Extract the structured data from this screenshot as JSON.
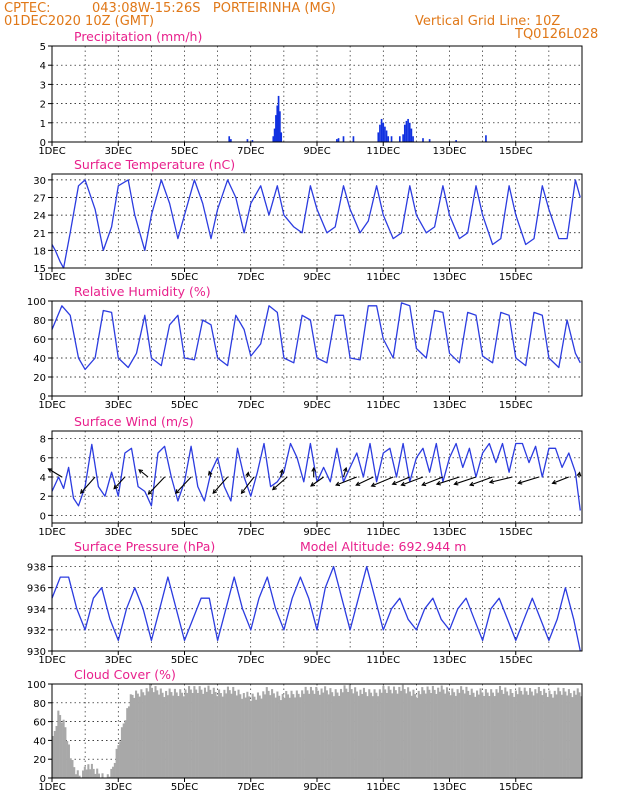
{
  "header": {
    "source": "CPTEC:",
    "location": "043:08W-15:26S   PORTEIRINHA (MG)",
    "run": "01DEC2020 10Z (GMT)",
    "grid_note": "Vertical Grid Line: 10Z",
    "model_id": "TQ0126L028"
  },
  "colors": {
    "header": "#e07818",
    "title": "#e8208c",
    "line": "#2c3ce0",
    "cloud": "#a8a8a8",
    "precip": "#1030e0"
  },
  "chart_data": [
    {
      "type": "bar",
      "title": "Precipitation (mm/h)",
      "ylim": [
        0,
        5
      ],
      "yticks": [
        0,
        1,
        2,
        3,
        4,
        5
      ],
      "xlabels": [
        "1DEC",
        "3DEC",
        "5DEC",
        "7DEC",
        "9DEC",
        "11DEC",
        "13DEC",
        "15DEC"
      ],
      "x_unit": "day",
      "bars": [
        [
          5.35,
          0.3
        ],
        [
          5.4,
          0.15
        ],
        [
          5.9,
          0.15
        ],
        [
          6.05,
          0.1
        ],
        [
          6.68,
          0.3
        ],
        [
          6.72,
          0.7
        ],
        [
          6.76,
          1.4
        ],
        [
          6.8,
          1.9
        ],
        [
          6.84,
          2.4
        ],
        [
          6.88,
          1.6
        ],
        [
          6.92,
          0.5
        ],
        [
          8.6,
          0.15
        ],
        [
          8.65,
          0.2
        ],
        [
          8.8,
          0.3
        ],
        [
          9.1,
          0.3
        ],
        [
          9.85,
          0.5
        ],
        [
          9.9,
          0.9
        ],
        [
          9.95,
          1.2
        ],
        [
          10.0,
          1.0
        ],
        [
          10.05,
          0.8
        ],
        [
          10.1,
          0.6
        ],
        [
          10.15,
          0.3
        ],
        [
          10.25,
          0.3
        ],
        [
          10.5,
          0.3
        ],
        [
          10.6,
          0.4
        ],
        [
          10.65,
          0.9
        ],
        [
          10.7,
          1.1
        ],
        [
          10.75,
          1.2
        ],
        [
          10.8,
          1.0
        ],
        [
          10.85,
          0.7
        ],
        [
          10.9,
          0.3
        ],
        [
          11.2,
          0.2
        ],
        [
          11.4,
          0.15
        ],
        [
          12.2,
          0.1
        ],
        [
          13.1,
          0.35
        ]
      ]
    },
    {
      "type": "line",
      "title": "Surface Temperature (nC)",
      "ylim": [
        15,
        31
      ],
      "yticks": [
        15,
        18,
        21,
        24,
        27,
        30
      ],
      "xlabels": [
        "1DEC",
        "3DEC",
        "5DEC",
        "7DEC",
        "9DEC",
        "11DEC",
        "13DEC",
        "15DEC"
      ],
      "series": [
        {
          "x": [
            0.0,
            0.1,
            0.25,
            0.35,
            0.55,
            0.8,
            1.0,
            1.3,
            1.55,
            1.8,
            2.0,
            2.3,
            2.5,
            2.8,
            3.0,
            3.3,
            3.55,
            3.8,
            4.0,
            4.3,
            4.55,
            4.8,
            5.0,
            5.3,
            5.55,
            5.8,
            6.0,
            6.3,
            6.55,
            6.8,
            7.0,
            7.3,
            7.55,
            7.8,
            8.0,
            8.3,
            8.55,
            8.8,
            9.0,
            9.3,
            9.55,
            9.8,
            10.0,
            10.3,
            10.55,
            10.8,
            11.0,
            11.3,
            11.55,
            11.8,
            12.0,
            12.3,
            12.55,
            12.8,
            13.0,
            13.3,
            13.55,
            13.8,
            14.0,
            14.3,
            14.55,
            14.8,
            15.0,
            15.3,
            15.55,
            15.8,
            15.95
          ],
          "y": [
            19,
            18,
            16,
            15,
            21,
            29,
            30,
            25,
            18,
            22,
            29,
            30,
            24,
            18,
            24,
            30,
            26,
            20,
            24,
            30,
            26,
            20,
            25,
            30,
            27,
            21,
            26,
            29,
            24,
            29,
            24,
            22,
            21,
            29,
            25,
            21,
            22,
            29,
            25,
            21,
            23,
            29,
            24,
            20,
            21,
            29,
            24,
            21,
            22,
            29,
            24,
            20,
            21,
            29,
            24,
            19,
            20,
            29,
            24,
            19,
            20,
            29,
            25,
            20,
            20,
            30,
            27
          ]
        }
      ]
    },
    {
      "type": "line",
      "title": "Relative Humidity (%)",
      "ylim": [
        0,
        100
      ],
      "yticks": [
        0,
        20,
        40,
        60,
        80,
        100
      ],
      "xlabels": [
        "1DEC",
        "3DEC",
        "5DEC",
        "7DEC",
        "9DEC",
        "11DEC",
        "13DEC",
        "15DEC"
      ],
      "series": [
        {
          "x": [
            0.0,
            0.3,
            0.55,
            0.8,
            1.0,
            1.3,
            1.55,
            1.8,
            2.0,
            2.3,
            2.55,
            2.8,
            3.0,
            3.3,
            3.55,
            3.8,
            4.0,
            4.3,
            4.55,
            4.8,
            5.0,
            5.3,
            5.55,
            5.8,
            6.0,
            6.3,
            6.55,
            6.8,
            7.0,
            7.3,
            7.55,
            7.8,
            8.0,
            8.3,
            8.55,
            8.8,
            9.0,
            9.3,
            9.55,
            9.8,
            10.0,
            10.3,
            10.55,
            10.8,
            11.0,
            11.3,
            11.55,
            11.8,
            12.0,
            12.3,
            12.55,
            12.8,
            13.0,
            13.3,
            13.55,
            13.8,
            14.0,
            14.3,
            14.55,
            14.8,
            15.0,
            15.3,
            15.55,
            15.8,
            15.95
          ],
          "y": [
            70,
            95,
            85,
            40,
            28,
            40,
            90,
            88,
            40,
            30,
            45,
            85,
            40,
            32,
            75,
            85,
            40,
            38,
            80,
            75,
            40,
            32,
            85,
            70,
            42,
            55,
            95,
            88,
            40,
            35,
            85,
            80,
            40,
            35,
            85,
            85,
            40,
            38,
            95,
            95,
            60,
            40,
            98,
            95,
            50,
            40,
            90,
            88,
            45,
            35,
            88,
            85,
            42,
            35,
            88,
            85,
            40,
            32,
            88,
            85,
            40,
            30,
            80,
            45,
            35
          ]
        }
      ]
    },
    {
      "type": "line",
      "title": "Surface Wind (m/s)",
      "ylim": [
        -0.8,
        8.8
      ],
      "yticks": [
        0,
        2,
        4,
        6,
        8
      ],
      "xlabels": [
        "1DEC",
        "3DEC",
        "5DEC",
        "7DEC",
        "9DEC",
        "11DEC",
        "13DEC",
        "15DEC"
      ],
      "series": [
        {
          "x": [
            0.0,
            0.2,
            0.35,
            0.5,
            0.65,
            0.8,
            1.0,
            1.2,
            1.4,
            1.6,
            1.8,
            2.0,
            2.2,
            2.4,
            2.6,
            2.8,
            3.0,
            3.2,
            3.4,
            3.6,
            3.8,
            4.0,
            4.2,
            4.4,
            4.6,
            4.8,
            5.0,
            5.2,
            5.4,
            5.6,
            5.8,
            6.0,
            6.2,
            6.4,
            6.6,
            6.8,
            7.0,
            7.2,
            7.4,
            7.6,
            7.8,
            8.0,
            8.2,
            8.4,
            8.6,
            8.8,
            9.0,
            9.2,
            9.4,
            9.6,
            9.8,
            10.0,
            10.2,
            10.4,
            10.6,
            10.8,
            11.0,
            11.2,
            11.4,
            11.6,
            11.8,
            12.0,
            12.2,
            12.4,
            12.6,
            12.8,
            13.0,
            13.2,
            13.4,
            13.6,
            13.8,
            14.0,
            14.2,
            14.4,
            14.6,
            14.8,
            15.0,
            15.2,
            15.4,
            15.6,
            15.8,
            15.95
          ],
          "y": [
            2.5,
            4.0,
            2.8,
            5.0,
            1.8,
            1.0,
            3.0,
            7.4,
            3.0,
            2.0,
            4.5,
            2.0,
            6.5,
            7.0,
            3.0,
            2.5,
            1.0,
            6.5,
            7.2,
            4.0,
            1.5,
            3.5,
            7.2,
            3.0,
            1.5,
            4.5,
            6.0,
            3.0,
            1.5,
            7.0,
            4.0,
            2.0,
            4.5,
            7.5,
            3.0,
            3.5,
            4.5,
            7.5,
            6.0,
            3.5,
            7.5,
            3.5,
            5.0,
            3.5,
            7.0,
            3.5,
            5.0,
            6.5,
            4.0,
            7.5,
            3.5,
            6.5,
            7.0,
            4.0,
            7.5,
            3.5,
            6.0,
            7.0,
            4.5,
            7.5,
            3.5,
            6.0,
            7.5,
            5.0,
            7.0,
            4.0,
            6.5,
            7.5,
            5.5,
            7.5,
            4.5,
            7.5,
            7.5,
            5.5,
            7.2,
            4.0,
            7.0,
            7.0,
            5.0,
            6.5,
            4.5,
            0.5
          ]
        }
      ],
      "arrows": [
        [
          0.3,
          -1.5,
          0.9
        ],
        [
          1.3,
          -1.6,
          -1.8
        ],
        [
          2.2,
          -1.2,
          -1.3
        ],
        [
          2.9,
          -1.0,
          0.8
        ],
        [
          3.4,
          -1.8,
          -1.9
        ],
        [
          4.2,
          -1.7,
          -1.8
        ],
        [
          4.8,
          -0.2,
          0.6
        ],
        [
          5.3,
          -1.6,
          -1.8
        ],
        [
          5.9,
          0.1,
          0.5
        ],
        [
          6.1,
          -1.4,
          -1.8
        ],
        [
          6.9,
          0.2,
          0.8
        ],
        [
          7.1,
          -1.6,
          -1.4
        ],
        [
          7.9,
          0.0,
          1.0
        ],
        [
          8.2,
          -1.4,
          -1.0
        ],
        [
          8.8,
          0.3,
          1.0
        ],
        [
          9.2,
          -2.3,
          -0.9
        ],
        [
          9.7,
          -1.9,
          -0.9
        ],
        [
          10.3,
          -2.4,
          -1.0
        ],
        [
          10.8,
          -1.9,
          -0.8
        ],
        [
          11.2,
          -2.4,
          -0.9
        ],
        [
          11.8,
          -2.3,
          -0.9
        ],
        [
          12.3,
          -2.5,
          -0.8
        ],
        [
          12.8,
          -2.4,
          -0.8
        ],
        [
          13.3,
          -2.5,
          -0.9
        ],
        [
          13.9,
          -2.5,
          -0.6
        ],
        [
          14.7,
          -2.3,
          -0.7
        ],
        [
          15.6,
          -1.8,
          -0.7
        ],
        [
          15.9,
          0.1,
          0.5
        ]
      ]
    },
    {
      "type": "line",
      "title": "Surface Pressure (hPa)",
      "annotation": "Model Altitude: 692.944 m",
      "ylim": [
        930,
        939
      ],
      "yticks": [
        930,
        932,
        934,
        936,
        938
      ],
      "xlabels": [
        "1DEC",
        "3DEC",
        "5DEC",
        "7DEC",
        "9DEC",
        "11DEC",
        "13DEC",
        "15DEC"
      ],
      "series": [
        {
          "x": [
            0.0,
            0.25,
            0.5,
            0.75,
            1.0,
            1.25,
            1.5,
            1.75,
            2.0,
            2.25,
            2.5,
            2.75,
            3.0,
            3.25,
            3.5,
            3.75,
            4.0,
            4.25,
            4.5,
            4.75,
            5.0,
            5.25,
            5.5,
            5.75,
            6.0,
            6.25,
            6.5,
            6.75,
            7.0,
            7.25,
            7.5,
            7.75,
            8.0,
            8.25,
            8.5,
            8.75,
            9.0,
            9.25,
            9.5,
            9.75,
            10.0,
            10.25,
            10.5,
            10.75,
            11.0,
            11.25,
            11.5,
            11.75,
            12.0,
            12.25,
            12.5,
            12.75,
            13.0,
            13.25,
            13.5,
            13.75,
            14.0,
            14.25,
            14.5,
            14.75,
            15.0,
            15.25,
            15.5,
            15.75,
            15.95
          ],
          "y": [
            935,
            937,
            937,
            934,
            932,
            935,
            936,
            933,
            931,
            934,
            936,
            934,
            931,
            934,
            937,
            934,
            931,
            933,
            935,
            935,
            931,
            934,
            937,
            934,
            932,
            935,
            937,
            934,
            932,
            935,
            937,
            935,
            932,
            936,
            938,
            935,
            932,
            935,
            938,
            935,
            932,
            934,
            935,
            933,
            932,
            934,
            935,
            933,
            932,
            934,
            935,
            933,
            931,
            934,
            935,
            933,
            931,
            933,
            935,
            933,
            931,
            933,
            936,
            933,
            930
          ]
        }
      ]
    },
    {
      "type": "area",
      "title": "Cloud Cover (%)",
      "ylim": [
        0,
        100
      ],
      "yticks": [
        0,
        20,
        40,
        60,
        80,
        100
      ],
      "xlabels": [
        "1DEC",
        "3DEC",
        "5DEC",
        "7DEC",
        "9DEC",
        "11DEC",
        "13DEC",
        "15DEC"
      ],
      "series": [
        {
          "x": [
            0.0,
            0.2,
            0.4,
            0.6,
            0.75,
            0.9,
            1.0,
            1.2,
            1.4,
            1.6,
            1.8,
            2.0,
            2.2,
            2.4,
            2.6,
            2.8,
            3.0,
            3.5,
            4.0,
            4.5,
            5.0,
            5.5,
            6.0,
            6.5,
            7.0,
            7.5,
            8.0,
            8.5,
            9.0,
            9.5,
            10.0,
            10.5,
            11.0,
            11.5,
            12.0,
            12.5,
            13.0,
            13.5,
            14.0,
            14.5,
            15.0,
            15.5,
            15.95
          ],
          "y": [
            40,
            75,
            60,
            20,
            10,
            5,
            20,
            15,
            10,
            5,
            10,
            40,
            70,
            92,
            95,
            98,
            100,
            95,
            97,
            100,
            96,
            98,
            90,
            97,
            92,
            96,
            99,
            96,
            100,
            95,
            98,
            100,
            95,
            100,
            97,
            98,
            95,
            98,
            96,
            98,
            95,
            97,
            95
          ]
        }
      ]
    }
  ]
}
